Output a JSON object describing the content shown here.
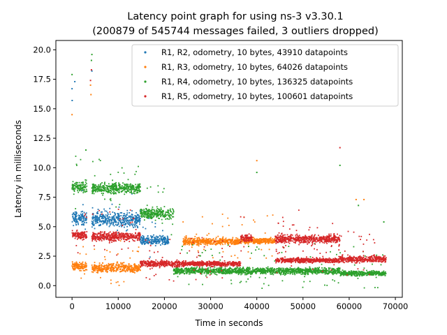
{
  "chart_data": {
    "type": "scatter",
    "title": "Latency point graph for using ns-3 v3.30.1",
    "subtitle": "(200879 of 545744 messages failed, 3 outliers dropped)",
    "xlabel": "Time in seconds",
    "ylabel": "Latency in milliseconds",
    "xlim": [
      -3500,
      71500
    ],
    "ylim": [
      -0.99,
      20.79
    ],
    "xticks": [
      0,
      10000,
      20000,
      30000,
      40000,
      50000,
      60000,
      70000
    ],
    "yticks": [
      0.0,
      2.5,
      5.0,
      7.5,
      10.0,
      12.5,
      15.0,
      17.5,
      20.0
    ],
    "grid": false,
    "legend_position": "top-right",
    "series": [
      {
        "name": "R1, R2, odometry, 10 bytes, 43910 datapoints",
        "color": "#1f77b4",
        "bands": [
          {
            "x": [
              0,
              3200
            ],
            "y": [
              5.0,
              6.4
            ]
          },
          {
            "x": [
              4300,
              14800
            ],
            "y": [
              4.8,
              6.4
            ]
          },
          {
            "x": [
              14800,
              21000
            ],
            "y": [
              3.3,
              4.3
            ]
          }
        ],
        "points": [
          [
            0,
            16.7
          ],
          [
            600,
            17.3
          ],
          [
            4300,
            18.2
          ],
          [
            30,
            15.7
          ]
        ]
      },
      {
        "name": "R1, R3, odometry, 10 bytes, 64026 datapoints",
        "color": "#ff7f0e",
        "bands": [
          {
            "x": [
              0,
              3200
            ],
            "y": [
              1.2,
              2.1
            ]
          },
          {
            "x": [
              4300,
              14800
            ],
            "y": [
              1.0,
              2.0
            ]
          },
          {
            "x": [
              24000,
              36500
            ],
            "y": [
              3.4,
              4.1
            ]
          },
          {
            "x": [
              36500,
              44000
            ],
            "y": [
              3.5,
              4.1
            ]
          }
        ],
        "points": [
          [
            0,
            14.5
          ],
          [
            4100,
            16.2
          ],
          [
            4000,
            17.0
          ],
          [
            40000,
            10.6
          ],
          [
            61500,
            7.3
          ],
          [
            63200,
            7.3
          ]
        ]
      },
      {
        "name": "R1, R4, odometry, 10 bytes, 136325 datapoints",
        "color": "#2ca02c",
        "bands": [
          {
            "x": [
              0,
              3200
            ],
            "y": [
              7.7,
              9.0
            ]
          },
          {
            "x": [
              4300,
              14800
            ],
            "y": [
              7.7,
              8.8
            ]
          },
          {
            "x": [
              14800,
              22000
            ],
            "y": [
              5.5,
              6.7
            ]
          },
          {
            "x": [
              22000,
              58000
            ],
            "y": [
              0.9,
              1.6
            ]
          },
          {
            "x": [
              58000,
              68000
            ],
            "y": [
              0.8,
              1.3
            ]
          }
        ],
        "points": [
          [
            0,
            17.9
          ],
          [
            4300,
            19.6
          ],
          [
            4200,
            19.1
          ],
          [
            40000,
            9.6
          ],
          [
            58000,
            10.2
          ],
          [
            3000,
            11.5
          ],
          [
            62000,
            6.8
          ],
          [
            67500,
            5.4
          ]
        ]
      },
      {
        "name": "R1, R5, odometry, 10 bytes, 100601 datapoints",
        "color": "#d62728",
        "bands": [
          {
            "x": [
              0,
              3200
            ],
            "y": [
              3.8,
              4.7
            ]
          },
          {
            "x": [
              4300,
              14800
            ],
            "y": [
              3.7,
              4.6
            ]
          },
          {
            "x": [
              14800,
              24000
            ],
            "y": [
              1.5,
              2.2
            ]
          },
          {
            "x": [
              24000,
              36500
            ],
            "y": [
              1.6,
              2.1
            ]
          },
          {
            "x": [
              36500,
              39000
            ],
            "y": [
              3.6,
              4.4
            ]
          },
          {
            "x": [
              44000,
              58000
            ],
            "y": [
              3.5,
              4.4
            ]
          },
          {
            "x": [
              44000,
              58000
            ],
            "y": [
              1.9,
              2.4
            ]
          },
          {
            "x": [
              58000,
              68000
            ],
            "y": [
              1.9,
              2.6
            ]
          }
        ],
        "points": [
          [
            4200,
            18.3
          ],
          [
            58000,
            11.7
          ],
          [
            4000,
            17.4
          ]
        ]
      }
    ]
  }
}
